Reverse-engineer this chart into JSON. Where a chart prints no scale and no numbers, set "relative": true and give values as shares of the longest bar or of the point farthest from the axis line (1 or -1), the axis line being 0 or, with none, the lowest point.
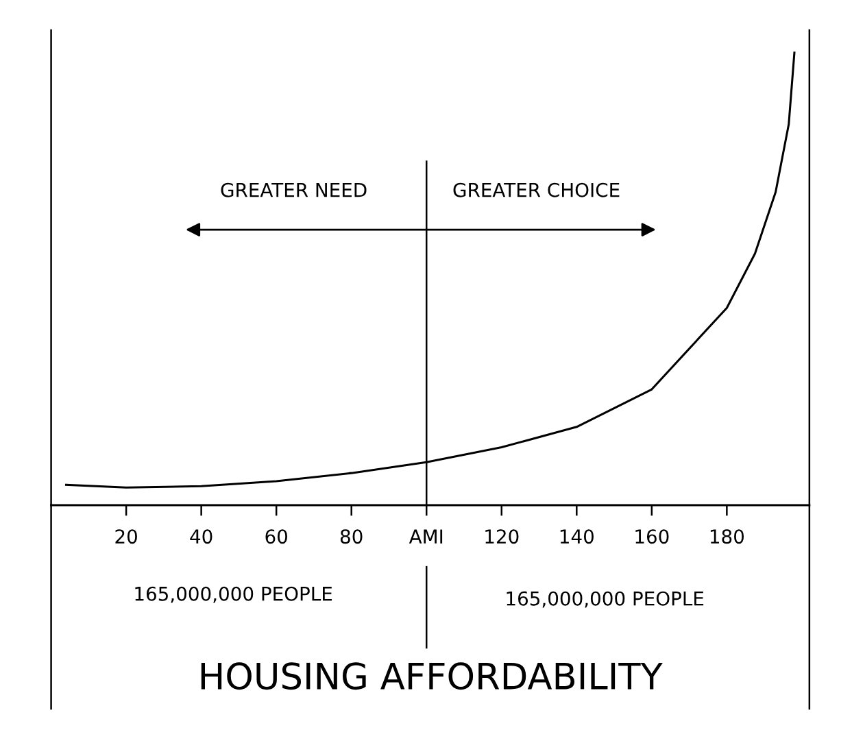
{
  "chart_data": {
    "type": "line",
    "relative": true,
    "xlabel": "HOUSING AFFORDABILITY",
    "x": [
      4,
      20,
      40,
      60,
      80,
      100,
      120,
      140,
      160,
      180,
      187.5,
      193,
      196.5,
      198
    ],
    "series": [
      {
        "color": "#000000",
        "values": [
          0.045,
          0.039,
          0.042,
          0.053,
          0.071,
          0.095,
          0.128,
          0.173,
          0.256,
          0.436,
          0.556,
          0.692,
          0.842,
          1.0
        ]
      }
    ],
    "xlim": [
      0,
      202
    ],
    "xticks": [
      20,
      40,
      60,
      80,
      {
        "value": 100,
        "label": "AMI"
      },
      120,
      140,
      160,
      180
    ],
    "ref_lines": [
      {
        "axis": "x",
        "value": 100,
        "color": "#000000"
      }
    ],
    "annotations": [
      "GREATER NEED",
      "GREATER CHOICE",
      "165,000,000 PEOPLE",
      "165,000,000 PEOPLE"
    ],
    "grid": false,
    "marker": "none",
    "line_style": "solid"
  }
}
